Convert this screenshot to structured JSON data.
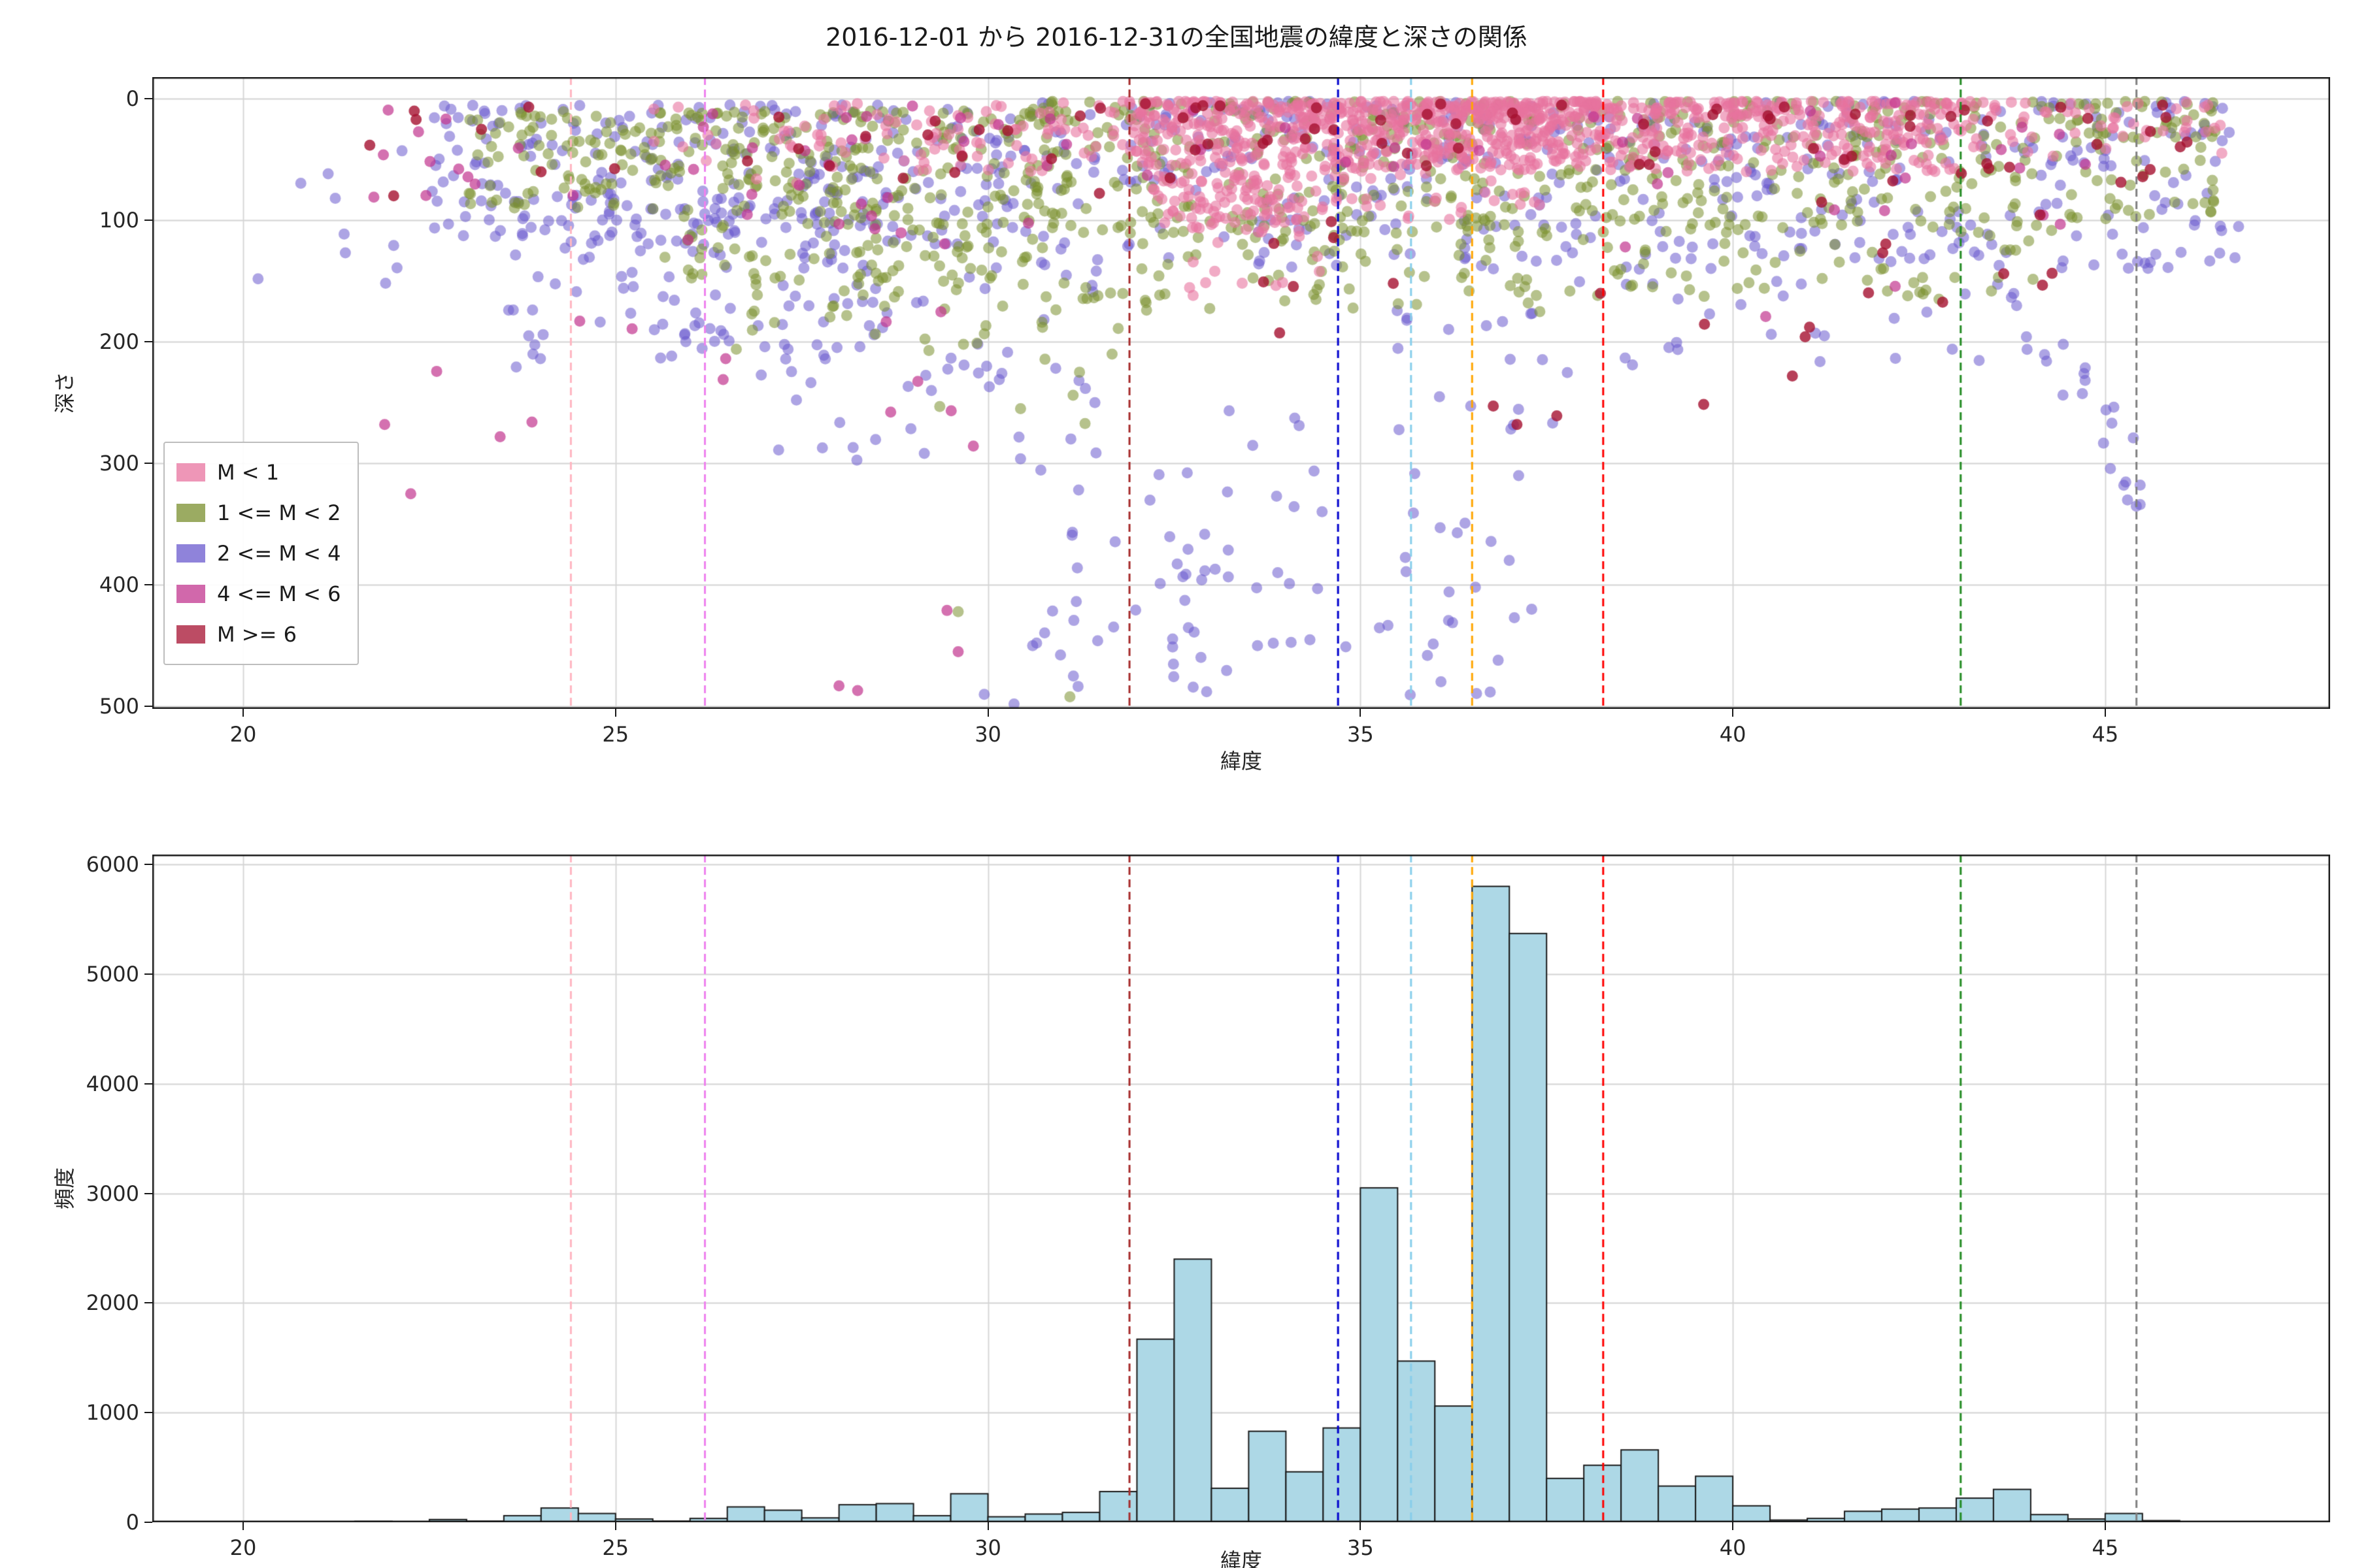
{
  "figure": {
    "title": "2016-12-01 から 2016-12-31の全国地震の緯度と深さの関係",
    "background": "#ffffff"
  },
  "chart_data": [
    {
      "type": "scatter",
      "title": "2016-12-01 から 2016-12-31の全国地震の緯度と深さの関係",
      "xlabel": "緯度",
      "ylabel": "深さ",
      "xlim": [
        18.78,
        48.02
      ],
      "ylim": [
        -18,
        502
      ],
      "y_inverted": true,
      "grid": true,
      "xticks": [
        20,
        25,
        30,
        35,
        40,
        45
      ],
      "yticks": [
        0,
        100,
        200,
        300,
        400,
        500
      ],
      "legend": {
        "position": "lower left",
        "entries": [
          {
            "label": "M < 1",
            "color": "#e8739f"
          },
          {
            "label": "1 <= M < 2",
            "color": "#7a8f2e"
          },
          {
            "label": "2 <= M < 4",
            "color": "#6a5acd"
          },
          {
            "label": "4 <= M < 6",
            "color": "#c2358f"
          },
          {
            "label": "M >= 6",
            "color": "#a51030"
          }
        ]
      },
      "series": [
        {
          "name": "2 <= M < 4",
          "color": "#6a5acd",
          "alpha": 0.55,
          "z": 1,
          "clusters": [
            {
              "n": 420,
              "lat": [
                30.5,
                46.8
              ],
              "depth": [
                2,
                140
              ],
              "decay": 1.4
            },
            {
              "n": 260,
              "lat": [
                22.5,
                30.5
              ],
              "depth": [
                5,
                120
              ],
              "decay": 1.2
            },
            {
              "n": 110,
              "lat": [
                23.5,
                28.5
              ],
              "depth": [
                80,
                230
              ],
              "decay": 1.0
            },
            {
              "n": 55,
              "lat": [
                27.0,
                31.5
              ],
              "depth": [
                120,
                300
              ],
              "decay": 1.0
            },
            {
              "n": 65,
              "lat": [
                32.3,
                37.6
              ],
              "depth": [
                250,
                500
              ],
              "decay": 0.9
            },
            {
              "n": 22,
              "lat": [
                30.3,
                33.0
              ],
              "depth": [
                300,
                505
              ],
              "decay": 1.0
            },
            {
              "n": 14,
              "lat": [
                35.0,
                38.2
              ],
              "depth": [
                150,
                260
              ],
              "decay": 1.0
            },
            {
              "n": 40,
              "lat": [
                38.5,
                43.5
              ],
              "depth": [
                100,
                220
              ],
              "decay": 1.1
            },
            {
              "n": 9,
              "lat": [
                20.1,
                22.3
              ],
              "depth": [
                30,
                155
              ],
              "decay": 1.0
            }
          ],
          "trends": [
            {
              "n": 26,
              "lat": [
                43.4,
                45.55
              ],
              "depth_start": 130,
              "depth_end": 320,
              "noise": 28
            }
          ],
          "extra_points": [
            [
              20.2,
              148
            ],
            [
              30.35,
              498
            ],
            [
              29.95,
              490
            ],
            [
              33.05,
              387
            ],
            [
              31.2,
              386
            ],
            [
              35.9,
              458
            ],
            [
              36.85,
              462
            ],
            [
              37.3,
              420
            ],
            [
              45.25,
              318
            ],
            [
              45.3,
              330
            ],
            [
              30.6,
              450
            ]
          ]
        },
        {
          "name": "1 <= M < 2",
          "color": "#7a8f2e",
          "alpha": 0.55,
          "z": 2,
          "clusters": [
            {
              "n": 520,
              "lat": [
                30.5,
                46.5
              ],
              "depth": [
                2,
                110
              ],
              "decay": 1.5
            },
            {
              "n": 260,
              "lat": [
                25.5,
                31.0
              ],
              "depth": [
                10,
                150
              ],
              "decay": 1.3
            },
            {
              "n": 110,
              "lat": [
                31.0,
                38.5
              ],
              "depth": [
                90,
                175
              ],
              "decay": 1.0
            },
            {
              "n": 70,
              "lat": [
                38.5,
                44.5
              ],
              "depth": [
                80,
                165
              ],
              "decay": 1.0
            },
            {
              "n": 40,
              "lat": [
                26.5,
                30.5
              ],
              "depth": [
                120,
                210
              ],
              "decay": 1.0
            },
            {
              "n": 18,
              "lat": [
                29.3,
                31.8
              ],
              "depth": [
                150,
                270
              ],
              "decay": 1.0
            },
            {
              "n": 90,
              "lat": [
                23.0,
                26.0
              ],
              "depth": [
                10,
                90
              ],
              "decay": 1.2
            }
          ],
          "trends": [],
          "extra_points": [
            [
              29.6,
              422
            ],
            [
              31.1,
              492
            ]
          ]
        },
        {
          "name": "M < 1",
          "color": "#e8739f",
          "alpha": 0.6,
          "z": 3,
          "clusters": [
            {
              "n": 420,
              "lat": [
                31.8,
                38.3
              ],
              "depth": [
                2,
                55
              ],
              "decay": 1.6
            },
            {
              "n": 420,
              "lat": [
                35.8,
                43.2
              ],
              "depth": [
                2,
                60
              ],
              "decay": 1.6
            },
            {
              "n": 150,
              "lat": [
                33.0,
                37.5
              ],
              "depth": [
                5,
                100
              ],
              "decay": 1.2
            },
            {
              "n": 90,
              "lat": [
                32.2,
                34.2
              ],
              "depth": [
                60,
                110
              ],
              "decay": 1.0
            },
            {
              "n": 70,
              "lat": [
                28.0,
                31.8
              ],
              "depth": [
                3,
                60
              ],
              "decay": 1.3
            },
            {
              "n": 50,
              "lat": [
                43.2,
                46.6
              ],
              "depth": [
                2,
                50
              ],
              "decay": 1.3
            },
            {
              "n": 25,
              "lat": [
                25.5,
                28.0
              ],
              "depth": [
                5,
                70
              ],
              "decay": 1.2
            },
            {
              "n": 12,
              "lat": [
                32.5,
                34.5
              ],
              "depth": [
                100,
                165
              ],
              "decay": 1.0
            }
          ],
          "trends": [],
          "extra_points": []
        },
        {
          "name": "4 <= M < 6",
          "color": "#c2358f",
          "alpha": 0.7,
          "z": 4,
          "clusters": [
            {
              "n": 40,
              "lat": [
                21.0,
                31.0
              ],
              "depth": [
                5,
                120
              ],
              "decay": 1.2
            },
            {
              "n": 12,
              "lat": [
                22.0,
                30.0
              ],
              "depth": [
                130,
                290
              ],
              "decay": 1.0
            },
            {
              "n": 26,
              "lat": [
                31.0,
                46.0
              ],
              "depth": [
                3,
                70
              ],
              "decay": 1.2
            },
            {
              "n": 7,
              "lat": [
                37.5,
                44.5
              ],
              "depth": [
                80,
                190
              ],
              "decay": 1.0
            }
          ],
          "trends": [],
          "extra_points": [
            [
              28.0,
              483
            ],
            [
              28.25,
              487
            ],
            [
              29.45,
              421
            ],
            [
              22.25,
              325
            ],
            [
              23.45,
              278
            ],
            [
              21.9,
              268
            ],
            [
              29.6,
              455
            ]
          ]
        },
        {
          "name": "M >= 6",
          "color": "#a51030",
          "alpha": 0.8,
          "z": 5,
          "clusters": [
            {
              "n": 60,
              "lat": [
                31.5,
                46.3
              ],
              "depth": [
                3,
                70
              ],
              "decay": 1.3
            },
            {
              "n": 20,
              "lat": [
                22.0,
                31.5
              ],
              "depth": [
                5,
                80
              ],
              "decay": 1.2
            },
            {
              "n": 20,
              "lat": [
                33.0,
                44.5
              ],
              "depth": [
                80,
                200
              ],
              "decay": 1.0
            },
            {
              "n": 4,
              "lat": [
                36.5,
                41.5
              ],
              "depth": [
                200,
                300
              ],
              "decay": 1.0
            }
          ],
          "trends": [],
          "extra_points": [
            [
              40.8,
              228
            ],
            [
              21.7,
              38
            ],
            [
              24.0,
              60
            ],
            [
              23.2,
              25
            ]
          ]
        }
      ],
      "vlines": [
        {
          "x": 24.4,
          "color": "#ffb6c1"
        },
        {
          "x": 26.2,
          "color": "#ee82ee"
        },
        {
          "x": 31.9,
          "color": "#a52a2a"
        },
        {
          "x": 34.7,
          "color": "#0000cd"
        },
        {
          "x": 35.68,
          "color": "#87ceeb"
        },
        {
          "x": 36.5,
          "color": "#ffa500"
        },
        {
          "x": 38.26,
          "color": "#ff0000"
        },
        {
          "x": 43.06,
          "color": "#228b22"
        },
        {
          "x": 45.42,
          "color": "#7f7f7f"
        }
      ]
    },
    {
      "type": "bar",
      "title": "",
      "xlabel": "緯度",
      "ylabel": "頻度",
      "xlim": [
        18.78,
        48.02
      ],
      "ylim": [
        0,
        6090
      ],
      "grid": true,
      "xticks": [
        20,
        25,
        30,
        35,
        40,
        45
      ],
      "yticks": [
        0,
        1000,
        2000,
        3000,
        4000,
        5000,
        6000
      ],
      "bar_color": "#add8e6",
      "bar_edge_color": "#1a1a1a",
      "bin_start": 21.5,
      "bin_width": 0.5,
      "values": [
        8,
        0,
        25,
        10,
        60,
        130,
        80,
        30,
        10,
        35,
        140,
        110,
        40,
        160,
        170,
        60,
        260,
        50,
        75,
        90,
        280,
        1670,
        2400,
        310,
        830,
        460,
        860,
        3050,
        1470,
        1060,
        5800,
        5370,
        400,
        520,
        660,
        330,
        420,
        150,
        20,
        35,
        100,
        120,
        130,
        220,
        300,
        70,
        30,
        80,
        15,
        5
      ],
      "vlines": [
        {
          "x": 24.4,
          "color": "#ffb6c1"
        },
        {
          "x": 26.2,
          "color": "#ee82ee"
        },
        {
          "x": 31.9,
          "color": "#a52a2a"
        },
        {
          "x": 34.7,
          "color": "#0000cd"
        },
        {
          "x": 35.68,
          "color": "#87ceeb"
        },
        {
          "x": 36.5,
          "color": "#ffa500"
        },
        {
          "x": 38.26,
          "color": "#ff0000"
        },
        {
          "x": 43.06,
          "color": "#228b22"
        },
        {
          "x": 45.42,
          "color": "#7f7f7f"
        }
      ]
    }
  ]
}
